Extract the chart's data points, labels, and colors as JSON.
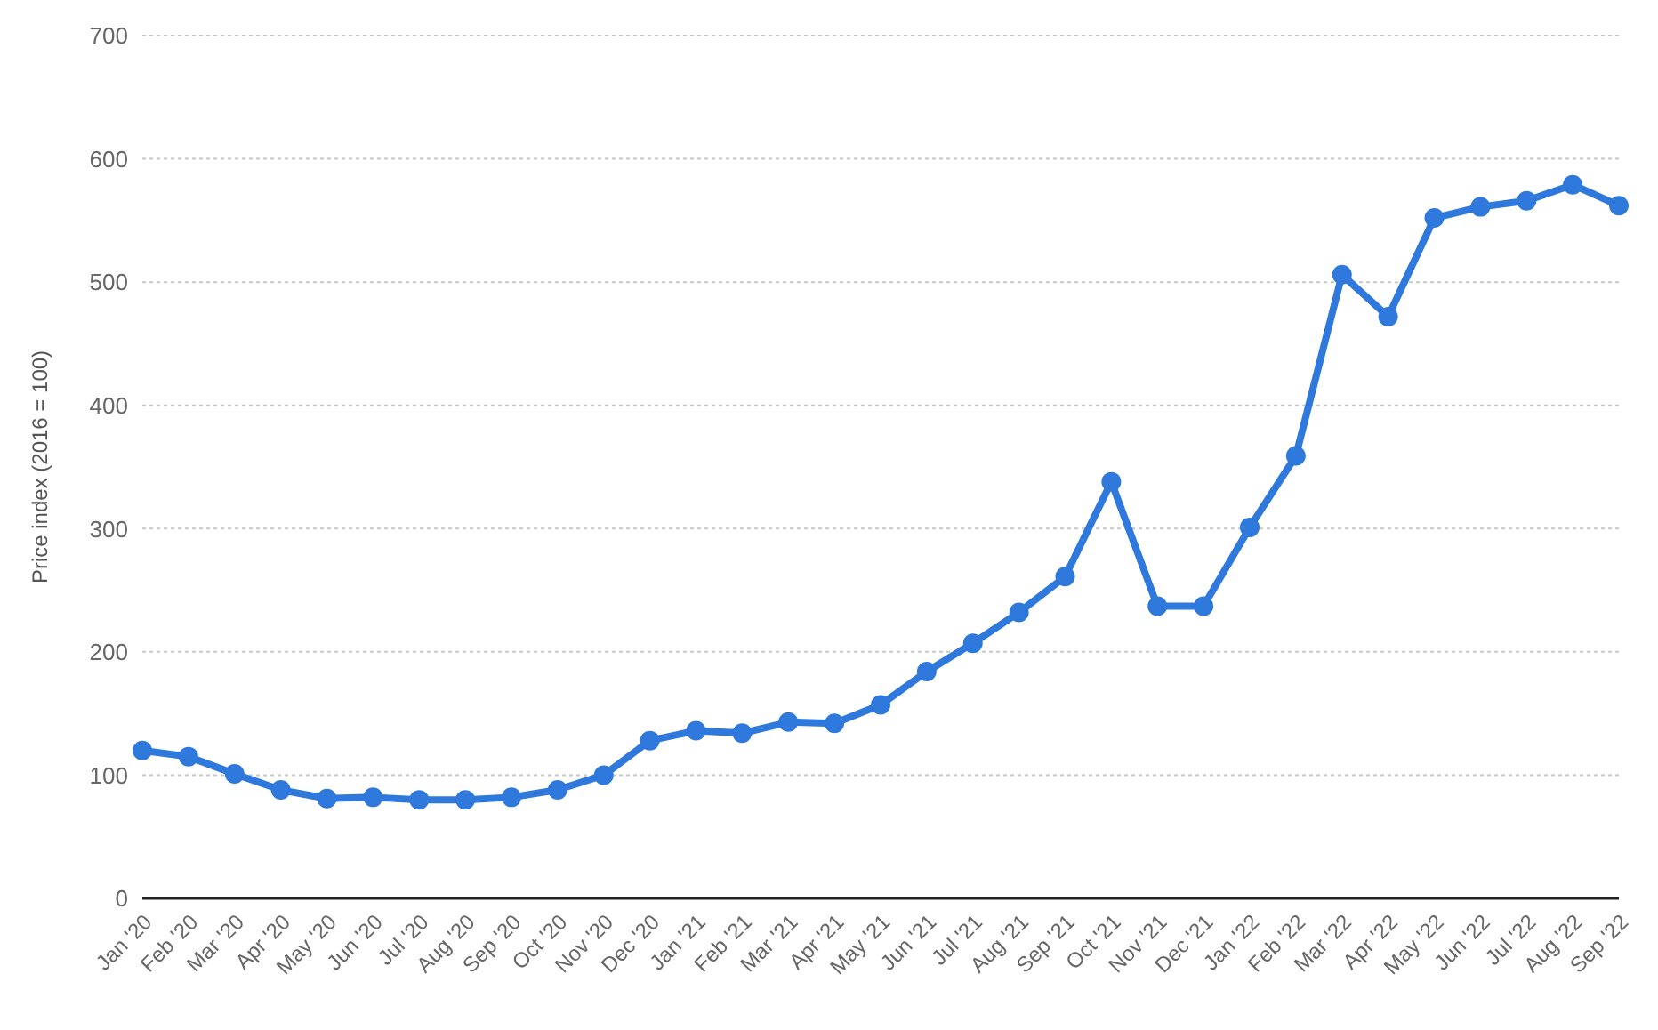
{
  "chart_data": {
    "type": "line",
    "ylabel": "Price index (2016 = 100)",
    "categories": [
      "Jan '20",
      "Feb '20",
      "Mar '20",
      "Apr '20",
      "May '20",
      "Jun '20",
      "Jul '20",
      "Aug '20",
      "Sep '20",
      "Oct '20",
      "Nov '20",
      "Dec '20",
      "Jan '21",
      "Feb '21",
      "Mar '21",
      "Apr '21",
      "May '21",
      "Jun '21",
      "Jul '21",
      "Aug '21",
      "Sep '21",
      "Oct '21",
      "Nov '21",
      "Dec '21",
      "Jan '22",
      "Feb '22",
      "Mar '22",
      "Apr '22",
      "May '22",
      "Jun '22",
      "Jul '22",
      "Aug '22",
      "Sep '22"
    ],
    "series": [
      {
        "color": "#2f78dc",
        "values": [
          120,
          115,
          101,
          88,
          81,
          82,
          80,
          80,
          82,
          88,
          100,
          128,
          136,
          134,
          143,
          142,
          157,
          184,
          207,
          232,
          261,
          338,
          237,
          237,
          301,
          359,
          506,
          472,
          552,
          561,
          566,
          579,
          562
        ]
      }
    ],
    "ylim": [
      0,
      700
    ],
    "yticks": [
      0,
      100,
      200,
      300,
      400,
      500,
      600,
      700
    ],
    "grid": "y",
    "marker": "circle",
    "line_style": "solid"
  }
}
